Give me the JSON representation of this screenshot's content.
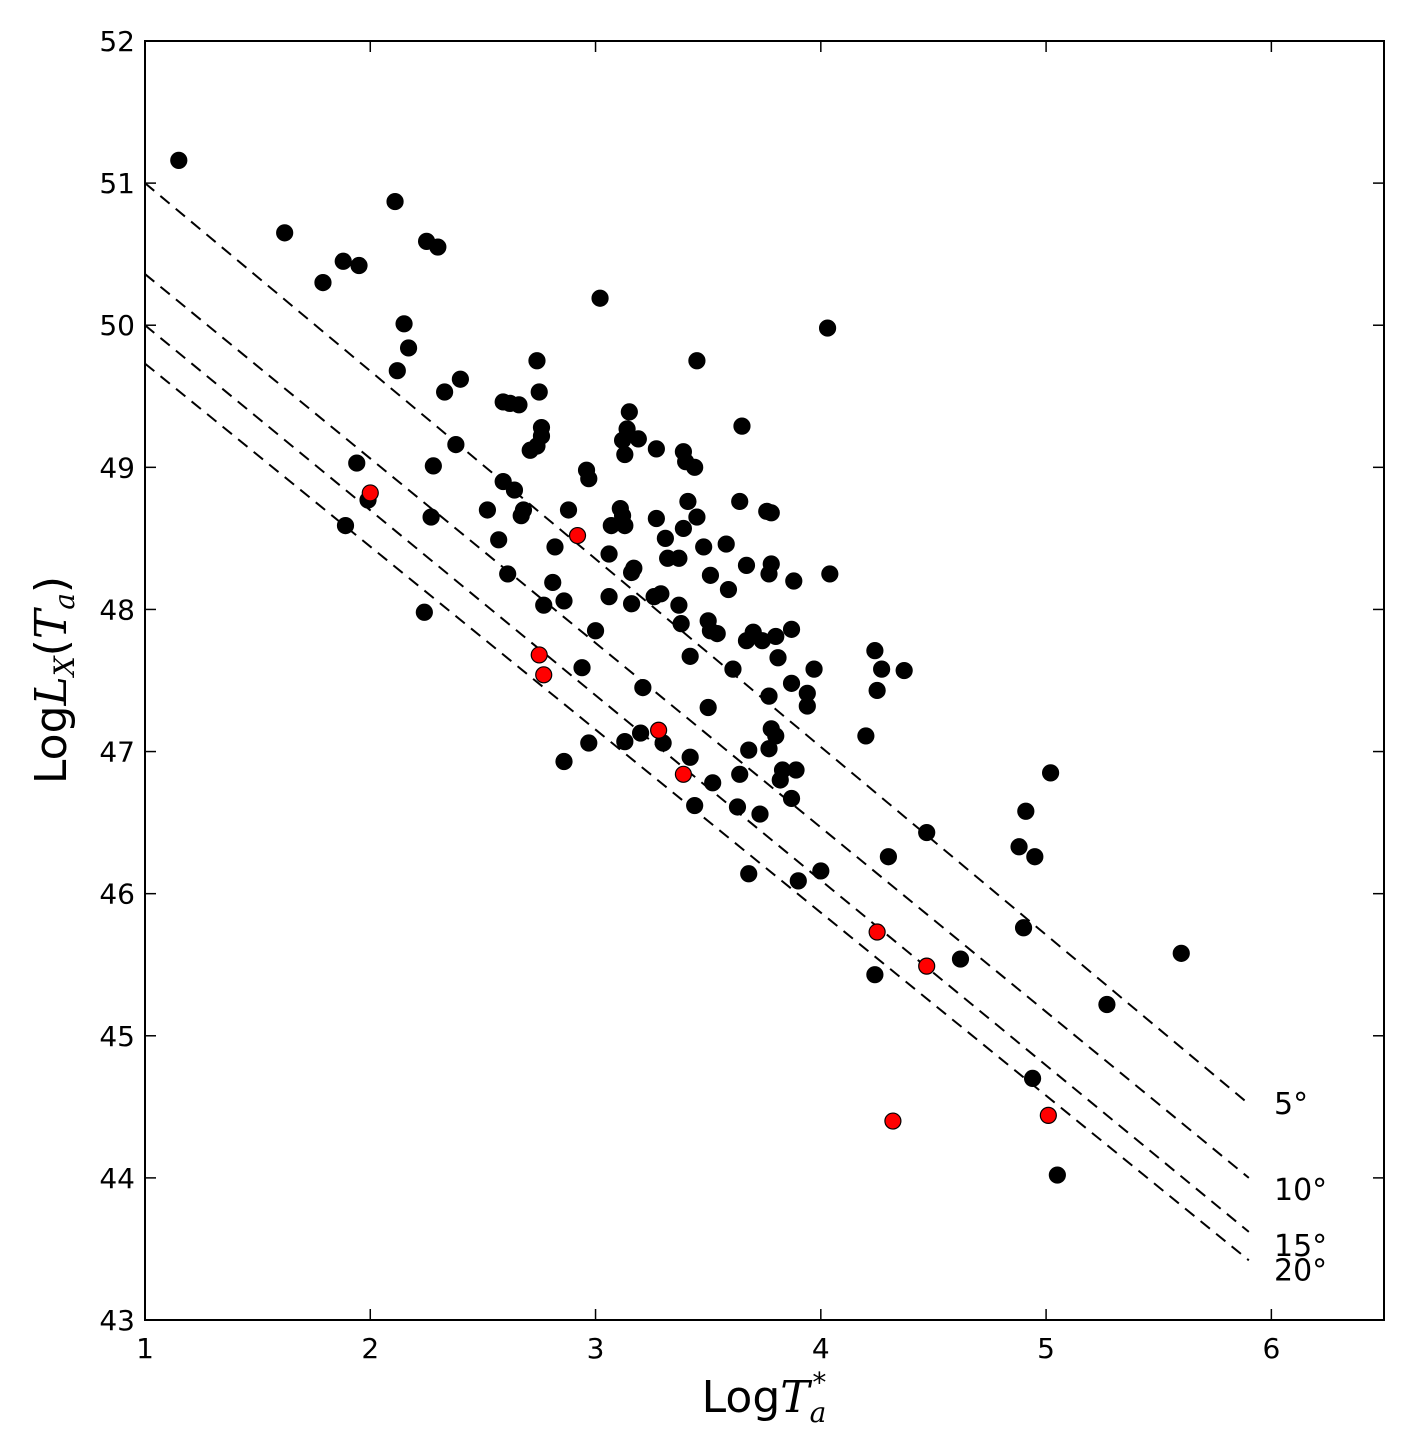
{
  "chart_data": {
    "type": "scatter",
    "xlabel": "Log",
    "xlabel_math": "T",
    "xlabel_sub": "a",
    "xlabel_sup": "*",
    "ylabel": "Log",
    "ylabel_math": "L",
    "ylabel_sub": "X",
    "ylabel_paren_open": "(",
    "ylabel_math2": "T",
    "ylabel_sub2": "a",
    "ylabel_paren_close": ")",
    "xlim": [
      1,
      6.5
    ],
    "ylim": [
      43,
      52
    ],
    "xticks": [
      1,
      2,
      3,
      4,
      5,
      6
    ],
    "yticks": [
      43,
      44,
      45,
      46,
      47,
      48,
      49,
      50,
      51,
      52
    ],
    "grid": false,
    "colors": {
      "black_points": "#000000",
      "red_points": "#ff0000",
      "lines": "#000000"
    },
    "lines": [
      {
        "label": "5°",
        "x": [
          1,
          5.9
        ],
        "y": [
          51.0,
          44.52
        ]
      },
      {
        "label": "10°",
        "x": [
          1,
          5.9
        ],
        "y": [
          50.36,
          44.0
        ]
      },
      {
        "label": "15°",
        "x": [
          1,
          5.9
        ],
        "y": [
          50.0,
          43.62
        ]
      },
      {
        "label": "20°",
        "x": [
          1,
          5.9
        ],
        "y": [
          49.73,
          43.42
        ]
      }
    ],
    "series": [
      {
        "color": "#000000",
        "points": [
          [
            1.15,
            51.16
          ],
          [
            1.62,
            50.65
          ],
          [
            1.79,
            50.3
          ],
          [
            1.88,
            50.45
          ],
          [
            1.95,
            50.42
          ],
          [
            2.11,
            50.87
          ],
          [
            2.25,
            50.59
          ],
          [
            2.3,
            50.55
          ],
          [
            2.15,
            50.01
          ],
          [
            2.17,
            49.84
          ],
          [
            2.12,
            49.68
          ],
          [
            2.33,
            49.53
          ],
          [
            2.4,
            49.62
          ],
          [
            1.94,
            49.03
          ],
          [
            1.89,
            48.59
          ],
          [
            1.99,
            48.77
          ],
          [
            2.27,
            48.65
          ],
          [
            2.28,
            49.01
          ],
          [
            2.38,
            49.16
          ],
          [
            2.24,
            47.98
          ],
          [
            2.52,
            48.7
          ],
          [
            2.57,
            48.49
          ],
          [
            2.59,
            48.9
          ],
          [
            2.61,
            48.25
          ],
          [
            2.64,
            48.84
          ],
          [
            2.59,
            49.46
          ],
          [
            2.62,
            49.45
          ],
          [
            2.66,
            49.44
          ],
          [
            2.67,
            48.66
          ],
          [
            2.68,
            48.7
          ],
          [
            2.71,
            49.12
          ],
          [
            2.74,
            49.75
          ],
          [
            2.75,
            49.53
          ],
          [
            2.76,
            49.28
          ],
          [
            2.76,
            49.22
          ],
          [
            2.74,
            49.15
          ],
          [
            2.77,
            48.03
          ],
          [
            2.81,
            48.19
          ],
          [
            2.82,
            48.44
          ],
          [
            2.86,
            48.06
          ],
          [
            2.88,
            48.7
          ],
          [
            2.86,
            46.93
          ],
          [
            2.94,
            47.59
          ],
          [
            2.96,
            48.98
          ],
          [
            2.97,
            48.92
          ],
          [
            2.97,
            47.06
          ],
          [
            3.0,
            47.85
          ],
          [
            3.02,
            50.19
          ],
          [
            3.06,
            48.09
          ],
          [
            3.06,
            48.39
          ],
          [
            3.07,
            48.59
          ],
          [
            3.11,
            48.71
          ],
          [
            3.12,
            48.66
          ],
          [
            3.12,
            49.19
          ],
          [
            3.13,
            49.09
          ],
          [
            3.14,
            49.27
          ],
          [
            3.15,
            49.39
          ],
          [
            3.13,
            48.59
          ],
          [
            3.16,
            48.26
          ],
          [
            3.17,
            48.29
          ],
          [
            3.16,
            48.04
          ],
          [
            3.19,
            49.2
          ],
          [
            3.21,
            47.45
          ],
          [
            3.2,
            47.13
          ],
          [
            3.13,
            47.07
          ],
          [
            3.26,
            48.09
          ],
          [
            3.27,
            48.64
          ],
          [
            3.27,
            49.13
          ],
          [
            3.29,
            48.11
          ],
          [
            3.31,
            48.5
          ],
          [
            3.32,
            48.36
          ],
          [
            3.3,
            47.06
          ],
          [
            3.37,
            48.03
          ],
          [
            3.38,
            47.9
          ],
          [
            3.37,
            48.36
          ],
          [
            3.39,
            48.57
          ],
          [
            3.39,
            49.11
          ],
          [
            3.4,
            49.04
          ],
          [
            3.41,
            48.76
          ],
          [
            3.44,
            49.0
          ],
          [
            3.45,
            48.65
          ],
          [
            3.45,
            49.75
          ],
          [
            3.42,
            47.67
          ],
          [
            3.42,
            46.96
          ],
          [
            3.44,
            46.62
          ],
          [
            3.48,
            48.44
          ],
          [
            3.5,
            47.92
          ],
          [
            3.5,
            47.31
          ],
          [
            3.51,
            48.24
          ],
          [
            3.51,
            47.85
          ],
          [
            3.54,
            47.83
          ],
          [
            3.52,
            46.78
          ],
          [
            3.58,
            48.46
          ],
          [
            3.59,
            48.14
          ],
          [
            3.61,
            47.58
          ],
          [
            3.63,
            46.61
          ],
          [
            3.64,
            46.84
          ],
          [
            3.64,
            48.76
          ],
          [
            3.65,
            49.29
          ],
          [
            3.67,
            48.31
          ],
          [
            3.67,
            47.78
          ],
          [
            3.68,
            47.01
          ],
          [
            3.68,
            46.14
          ],
          [
            3.7,
            47.84
          ],
          [
            3.73,
            46.56
          ],
          [
            3.74,
            47.78
          ],
          [
            3.76,
            48.69
          ],
          [
            3.78,
            48.68
          ],
          [
            3.77,
            48.25
          ],
          [
            3.78,
            48.32
          ],
          [
            3.77,
            47.39
          ],
          [
            3.78,
            47.16
          ],
          [
            3.77,
            47.02
          ],
          [
            3.8,
            47.81
          ],
          [
            3.8,
            47.11
          ],
          [
            3.81,
            47.66
          ],
          [
            3.82,
            46.8
          ],
          [
            3.83,
            46.87
          ],
          [
            3.87,
            47.86
          ],
          [
            3.88,
            48.2
          ],
          [
            3.87,
            47.48
          ],
          [
            3.87,
            46.67
          ],
          [
            3.89,
            46.87
          ],
          [
            3.9,
            46.09
          ],
          [
            3.94,
            47.41
          ],
          [
            3.94,
            47.32
          ],
          [
            3.97,
            47.58
          ],
          [
            4.0,
            46.16
          ],
          [
            4.03,
            49.98
          ],
          [
            4.04,
            48.25
          ],
          [
            4.2,
            47.11
          ],
          [
            4.24,
            47.71
          ],
          [
            4.25,
            47.43
          ],
          [
            4.27,
            47.58
          ],
          [
            4.24,
            45.43
          ],
          [
            4.3,
            46.26
          ],
          [
            4.37,
            47.57
          ],
          [
            4.47,
            46.43
          ],
          [
            4.62,
            45.54
          ],
          [
            4.88,
            46.33
          ],
          [
            4.91,
            46.58
          ],
          [
            4.9,
            45.76
          ],
          [
            4.95,
            46.26
          ],
          [
            4.94,
            44.7
          ],
          [
            5.02,
            46.85
          ],
          [
            5.05,
            44.02
          ],
          [
            5.27,
            45.22
          ],
          [
            5.6,
            45.58
          ]
        ]
      },
      {
        "color": "#ff0000",
        "points": [
          [
            2.0,
            48.82
          ],
          [
            2.75,
            47.68
          ],
          [
            2.77,
            47.54
          ],
          [
            2.92,
            48.52
          ],
          [
            3.28,
            47.15
          ],
          [
            3.39,
            46.84
          ],
          [
            4.25,
            45.73
          ],
          [
            4.47,
            45.49
          ],
          [
            4.32,
            44.4
          ],
          [
            5.01,
            44.44
          ]
        ]
      }
    ]
  }
}
